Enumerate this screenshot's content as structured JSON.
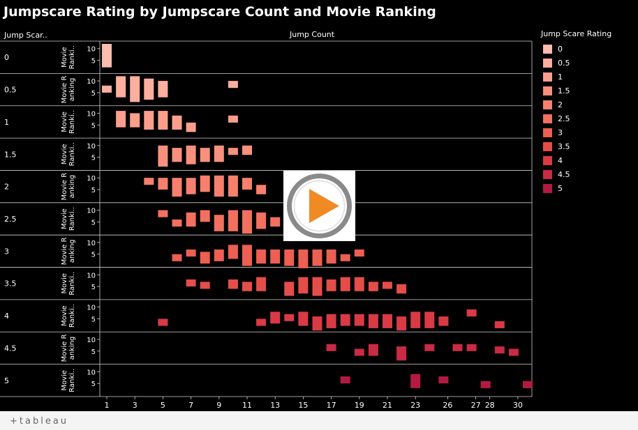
{
  "page": {
    "title": "Jumpscare Rating by Jumpscare Count and Movie Ranking",
    "row_header": "Jump Scar..",
    "column_header": "Jump Count"
  },
  "legend": {
    "title": "Jump Scare Rating",
    "items": [
      {
        "label": "0",
        "color": "#fdbcb0"
      },
      {
        "label": "0.5",
        "color": "#fcae9f"
      },
      {
        "label": "1",
        "color": "#fb9f8d"
      },
      {
        "label": "1.5",
        "color": "#f9907d"
      },
      {
        "label": "2",
        "color": "#f6806d"
      },
      {
        "label": "2.5",
        "color": "#f2705f"
      },
      {
        "label": "3",
        "color": "#ec5f52"
      },
      {
        "label": "3.5",
        "color": "#e44d49"
      },
      {
        "label": "4",
        "color": "#d93a45"
      },
      {
        "label": "4.5",
        "color": "#c92a44"
      },
      {
        "label": "5",
        "color": "#b31a42"
      }
    ]
  },
  "footer": {
    "logo_text": "+tableau",
    "logo_icon": "tableau-plus-icon"
  },
  "overlay": {
    "icon": "play-icon",
    "accent": "#f08a24"
  },
  "chart_data": {
    "type": "bar",
    "title": "Jumpscare Rating by Jumpscare Count and Movie Ranking",
    "xlabel": "Jump Count",
    "ylabel": "Movie Ranking",
    "row_field": "Jump Scare Rating",
    "x_ticks": [
      1,
      3,
      5,
      7,
      9,
      11,
      13,
      15,
      17,
      19,
      21,
      23,
      26,
      27,
      28,
      30
    ],
    "y_ticks": [
      5,
      10
    ],
    "y_panel_labels": [
      "Movie Ranki..",
      "Movie Ranking",
      "Movie Ranki..",
      "Movie Ranki..",
      "Movie Ranking",
      "Movie Ranki..",
      "Movie Ranking",
      "Movie Ranki..",
      "Movie Ranki..",
      "Movie Ranking",
      "Movie Ranki.."
    ],
    "rows": [
      {
        "rating": "0",
        "bars": [
          [
            0,
            2,
            12
          ]
        ]
      },
      {
        "rating": "0.5",
        "bars": [
          [
            0,
            5,
            8
          ],
          [
            1,
            3,
            12
          ],
          [
            2,
            1,
            12
          ],
          [
            3,
            2,
            11
          ],
          [
            4,
            3,
            10
          ],
          [
            9,
            7,
            10
          ]
        ]
      },
      {
        "rating": "1",
        "bars": [
          [
            1,
            4,
            11
          ],
          [
            2,
            4,
            10
          ],
          [
            3,
            3,
            11
          ],
          [
            4,
            3,
            11
          ],
          [
            5,
            3,
            9
          ],
          [
            6,
            2,
            6
          ],
          [
            9,
            6,
            9
          ]
        ]
      },
      {
        "rating": "1.5",
        "bars": [
          [
            4,
            1,
            10
          ],
          [
            5,
            3,
            9
          ],
          [
            6,
            2,
            10
          ],
          [
            7,
            3,
            9
          ],
          [
            8,
            3,
            10
          ],
          [
            9,
            6,
            9
          ],
          [
            10,
            6,
            10
          ]
        ]
      },
      {
        "rating": "2",
        "bars": [
          [
            3,
            7,
            10
          ],
          [
            4,
            5,
            10
          ],
          [
            5,
            2,
            10
          ],
          [
            6,
            3,
            10
          ],
          [
            7,
            4,
            11
          ],
          [
            8,
            2,
            11
          ],
          [
            9,
            2,
            11
          ],
          [
            10,
            5,
            10
          ],
          [
            11,
            3,
            7
          ]
        ]
      },
      {
        "rating": "2.5",
        "bars": [
          [
            4,
            7,
            10
          ],
          [
            5,
            3,
            6
          ],
          [
            6,
            3,
            9
          ],
          [
            7,
            5,
            10
          ],
          [
            8,
            1,
            8
          ],
          [
            9,
            1,
            10
          ],
          [
            10,
            0,
            10
          ],
          [
            11,
            2,
            9
          ],
          [
            12,
            3,
            7
          ]
        ]
      },
      {
        "rating": "3",
        "bars": [
          [
            5,
            2,
            5
          ],
          [
            6,
            4,
            7
          ],
          [
            7,
            1,
            6
          ],
          [
            8,
            2,
            7
          ],
          [
            9,
            3,
            9
          ],
          [
            10,
            0,
            9
          ],
          [
            11,
            1,
            7
          ],
          [
            12,
            1,
            7
          ],
          [
            13,
            0,
            7
          ],
          [
            14,
            -1,
            7
          ],
          [
            15,
            0,
            7
          ],
          [
            16,
            1,
            7
          ],
          [
            17,
            2,
            5
          ],
          [
            18,
            4,
            7
          ]
        ]
      },
      {
        "rating": "3.5",
        "bars": [
          [
            6,
            5,
            8
          ],
          [
            7,
            4,
            7
          ],
          [
            9,
            4,
            8
          ],
          [
            10,
            3,
            7
          ],
          [
            11,
            3,
            9
          ],
          [
            13,
            1,
            7
          ],
          [
            14,
            2,
            9
          ],
          [
            15,
            1,
            9
          ],
          [
            16,
            3,
            8
          ],
          [
            17,
            3,
            9
          ],
          [
            18,
            3,
            9
          ],
          [
            19,
            3,
            7
          ],
          [
            20,
            4,
            7
          ],
          [
            21,
            2,
            6
          ]
        ]
      },
      {
        "rating": "4",
        "bars": [
          [
            4,
            2,
            5
          ],
          [
            11,
            2,
            5
          ],
          [
            12,
            3,
            8
          ],
          [
            13,
            4,
            7
          ],
          [
            14,
            2,
            8
          ],
          [
            15,
            0,
            6
          ],
          [
            16,
            1,
            7
          ],
          [
            17,
            2,
            7
          ],
          [
            18,
            2,
            7
          ],
          [
            19,
            1,
            7
          ],
          [
            20,
            1,
            7
          ],
          [
            21,
            0,
            6
          ],
          [
            22,
            1,
            8
          ],
          [
            23,
            1,
            8
          ],
          [
            24,
            2,
            6
          ],
          [
            26,
            6,
            9
          ],
          [
            28,
            1,
            4
          ]
        ]
      },
      {
        "rating": "4.5",
        "bars": [
          [
            16,
            5,
            8
          ],
          [
            18,
            3,
            6
          ],
          [
            19,
            3,
            8
          ],
          [
            21,
            1,
            7
          ],
          [
            23,
            5,
            8
          ],
          [
            25,
            5,
            8
          ],
          [
            26,
            5,
            8
          ],
          [
            28,
            4,
            7
          ],
          [
            29,
            3,
            6
          ]
        ]
      },
      {
        "rating": "5",
        "bars": [
          [
            17,
            5,
            8
          ],
          [
            22,
            3,
            9
          ],
          [
            24,
            5,
            8
          ],
          [
            27,
            3,
            6
          ],
          [
            30,
            3,
            6
          ]
        ]
      }
    ]
  }
}
